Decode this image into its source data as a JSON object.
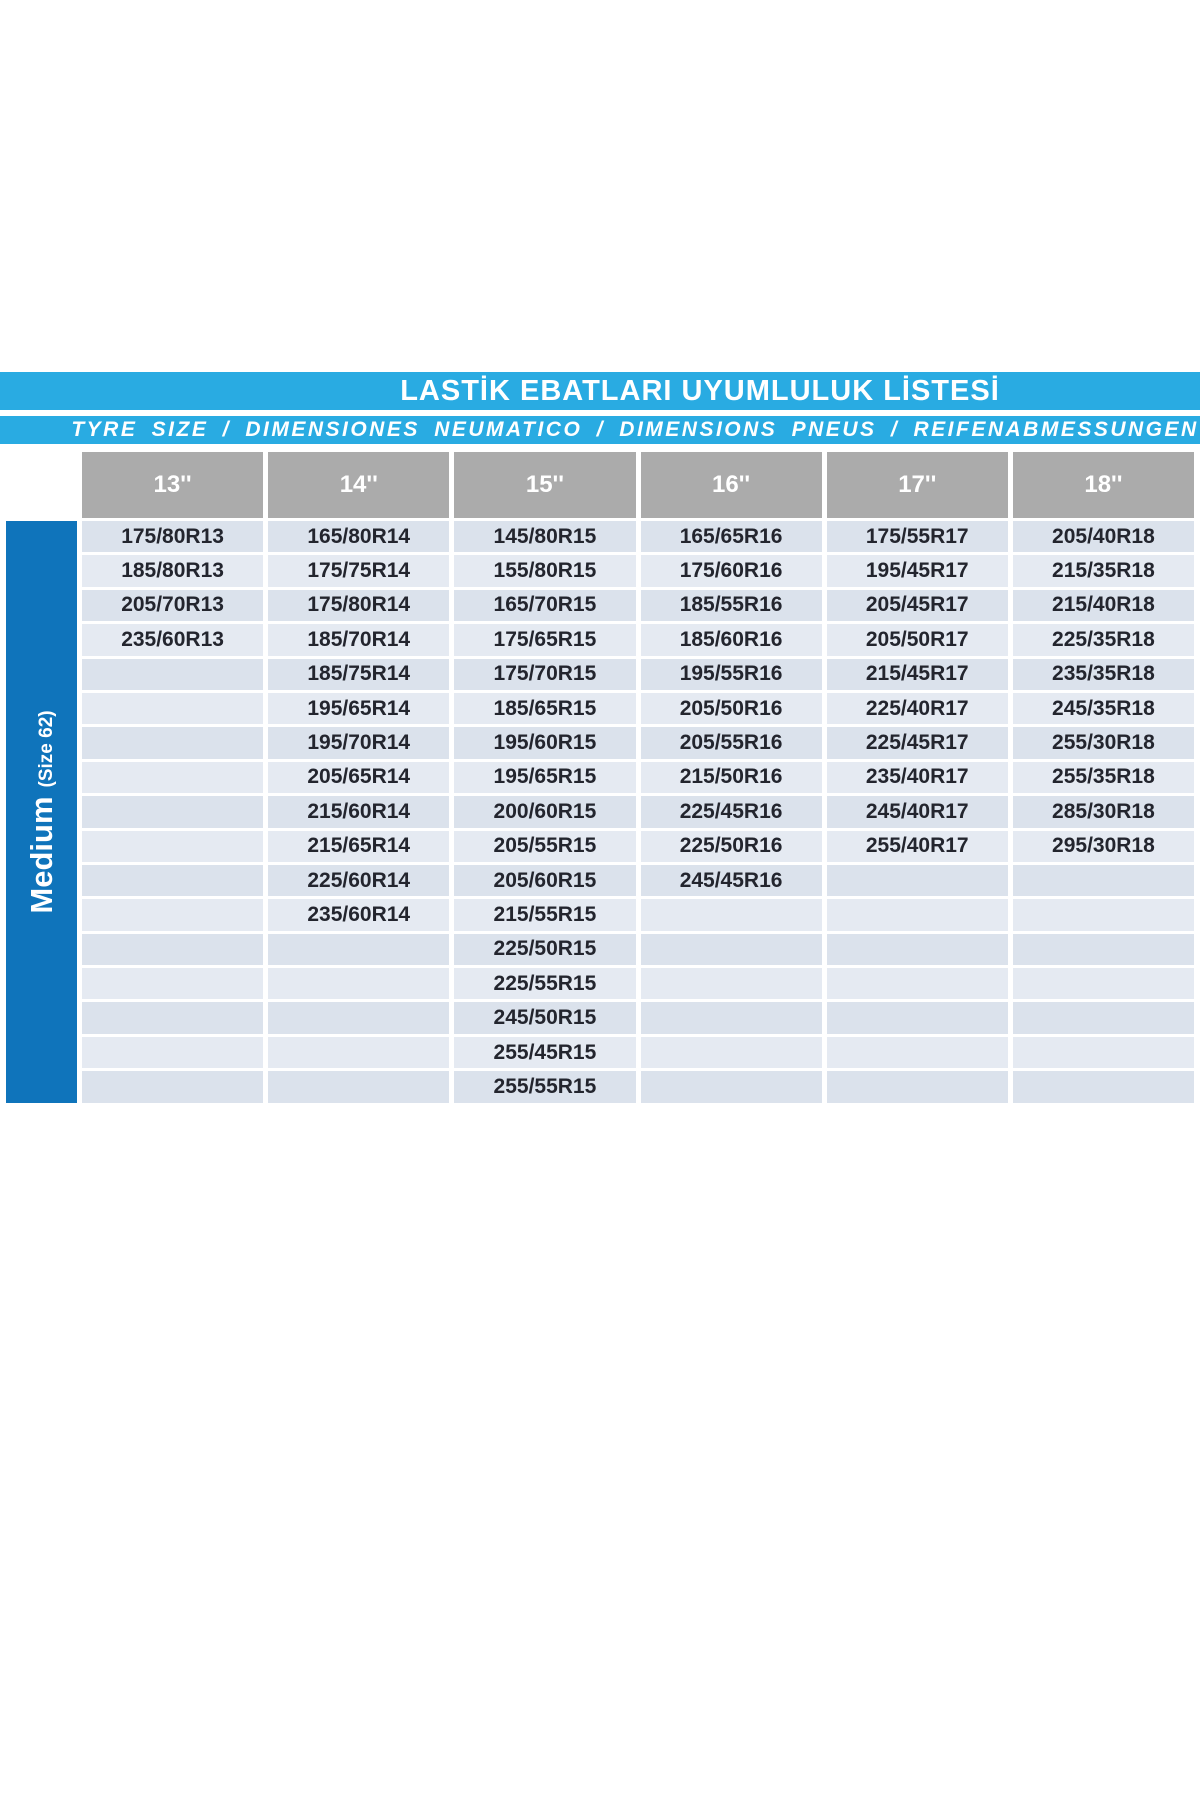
{
  "title": "LASTİK EBATLARI UYUMLULUK LİSTESİ",
  "subtitle": "TYRE SIZE / DIMENSIONES NEUMATICO / DIMENSIONS PNEUS / REIFENABMESSUNGEN",
  "side_label": {
    "main": "Medium",
    "sub": "(Size 62)"
  },
  "columns": [
    "13''",
    "14''",
    "15''",
    "16''",
    "17''",
    "18''"
  ],
  "rows": [
    [
      "175/80R13",
      "165/80R14",
      "145/80R15",
      "165/65R16",
      "175/55R17",
      "205/40R18"
    ],
    [
      "185/80R13",
      "175/75R14",
      "155/80R15",
      "175/60R16",
      "195/45R17",
      "215/35R18"
    ],
    [
      "205/70R13",
      "175/80R14",
      "165/70R15",
      "185/55R16",
      "205/45R17",
      "215/40R18"
    ],
    [
      "235/60R13",
      "185/70R14",
      "175/65R15",
      "185/60R16",
      "205/50R17",
      "225/35R18"
    ],
    [
      "",
      "185/75R14",
      "175/70R15",
      "195/55R16",
      "215/45R17",
      "235/35R18"
    ],
    [
      "",
      "195/65R14",
      "185/65R15",
      "205/50R16",
      "225/40R17",
      "245/35R18"
    ],
    [
      "",
      "195/70R14",
      "195/60R15",
      "205/55R16",
      "225/45R17",
      "255/30R18"
    ],
    [
      "",
      "205/65R14",
      "195/65R15",
      "215/50R16",
      "235/40R17",
      "255/35R18"
    ],
    [
      "",
      "215/60R14",
      "200/60R15",
      "225/45R16",
      "245/40R17",
      "285/30R18"
    ],
    [
      "",
      "215/65R14",
      "205/55R15",
      "225/50R16",
      "255/40R17",
      "295/30R18"
    ],
    [
      "",
      "225/60R14",
      "205/60R15",
      "245/45R16",
      "",
      ""
    ],
    [
      "",
      "235/60R14",
      "215/55R15",
      "",
      "",
      ""
    ],
    [
      "",
      "",
      "225/50R15",
      "",
      "",
      ""
    ],
    [
      "",
      "",
      "225/55R15",
      "",
      "",
      ""
    ],
    [
      "",
      "",
      "245/50R15",
      "",
      "",
      ""
    ],
    [
      "",
      "",
      "255/45R15",
      "",
      "",
      ""
    ],
    [
      "",
      "",
      "255/55R15",
      "",
      "",
      ""
    ]
  ],
  "colors": {
    "cyan": "#29abe2",
    "gray": "#ababab",
    "blue": "#0f74bb",
    "row_odd": "#dbe2ec",
    "row_even": "#e5eaf2",
    "cell_text": "#23252e"
  }
}
